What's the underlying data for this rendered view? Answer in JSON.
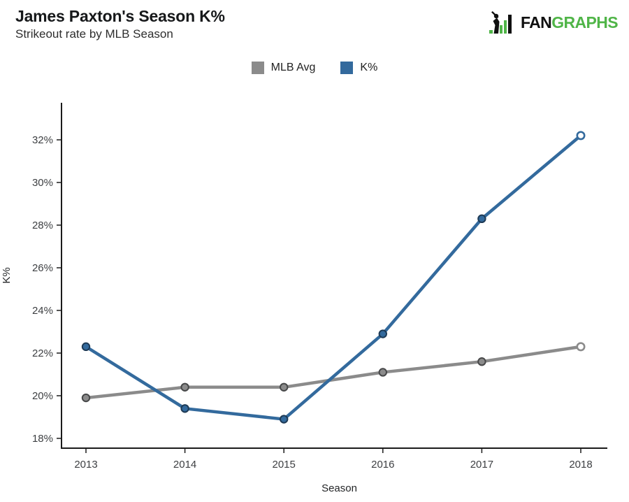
{
  "header": {
    "title": "James Paxton's Season K%",
    "subtitle": "Strikeout rate by MLB Season"
  },
  "logo": {
    "fan": "FAN",
    "graphs": "GRAPHS",
    "green": "#50b548",
    "black": "#101010"
  },
  "legend": [
    {
      "label": "MLB Avg",
      "color": "#8b8b8b"
    },
    {
      "label": "K%",
      "color": "#336a9d"
    }
  ],
  "chart_data": {
    "type": "line",
    "title": "James Paxton's Season K%",
    "subtitle": "Strikeout rate by MLB Season",
    "xlabel": "Season",
    "ylabel": "K%",
    "x": [
      "2013",
      "2014",
      "2015",
      "2016",
      "2017",
      "2018"
    ],
    "series": [
      {
        "name": "MLB Avg",
        "color": "#8b8b8b",
        "marker_outline": "#474849",
        "values": [
          19.9,
          20.4,
          20.4,
          21.1,
          21.6,
          22.3
        ]
      },
      {
        "name": "K%",
        "color": "#336a9d",
        "marker_outline": "#1e3a55",
        "values": [
          22.3,
          19.4,
          18.9,
          22.9,
          28.3,
          32.2
        ]
      }
    ],
    "yticks": [
      18,
      20,
      22,
      24,
      26,
      28,
      30,
      32
    ],
    "ytick_suffix": "%",
    "ylim": [
      17.5,
      33.6
    ],
    "grid": false,
    "legend_position": "top-center",
    "last_point_style": "open-circle",
    "axis_color": "#1b1b1b"
  }
}
